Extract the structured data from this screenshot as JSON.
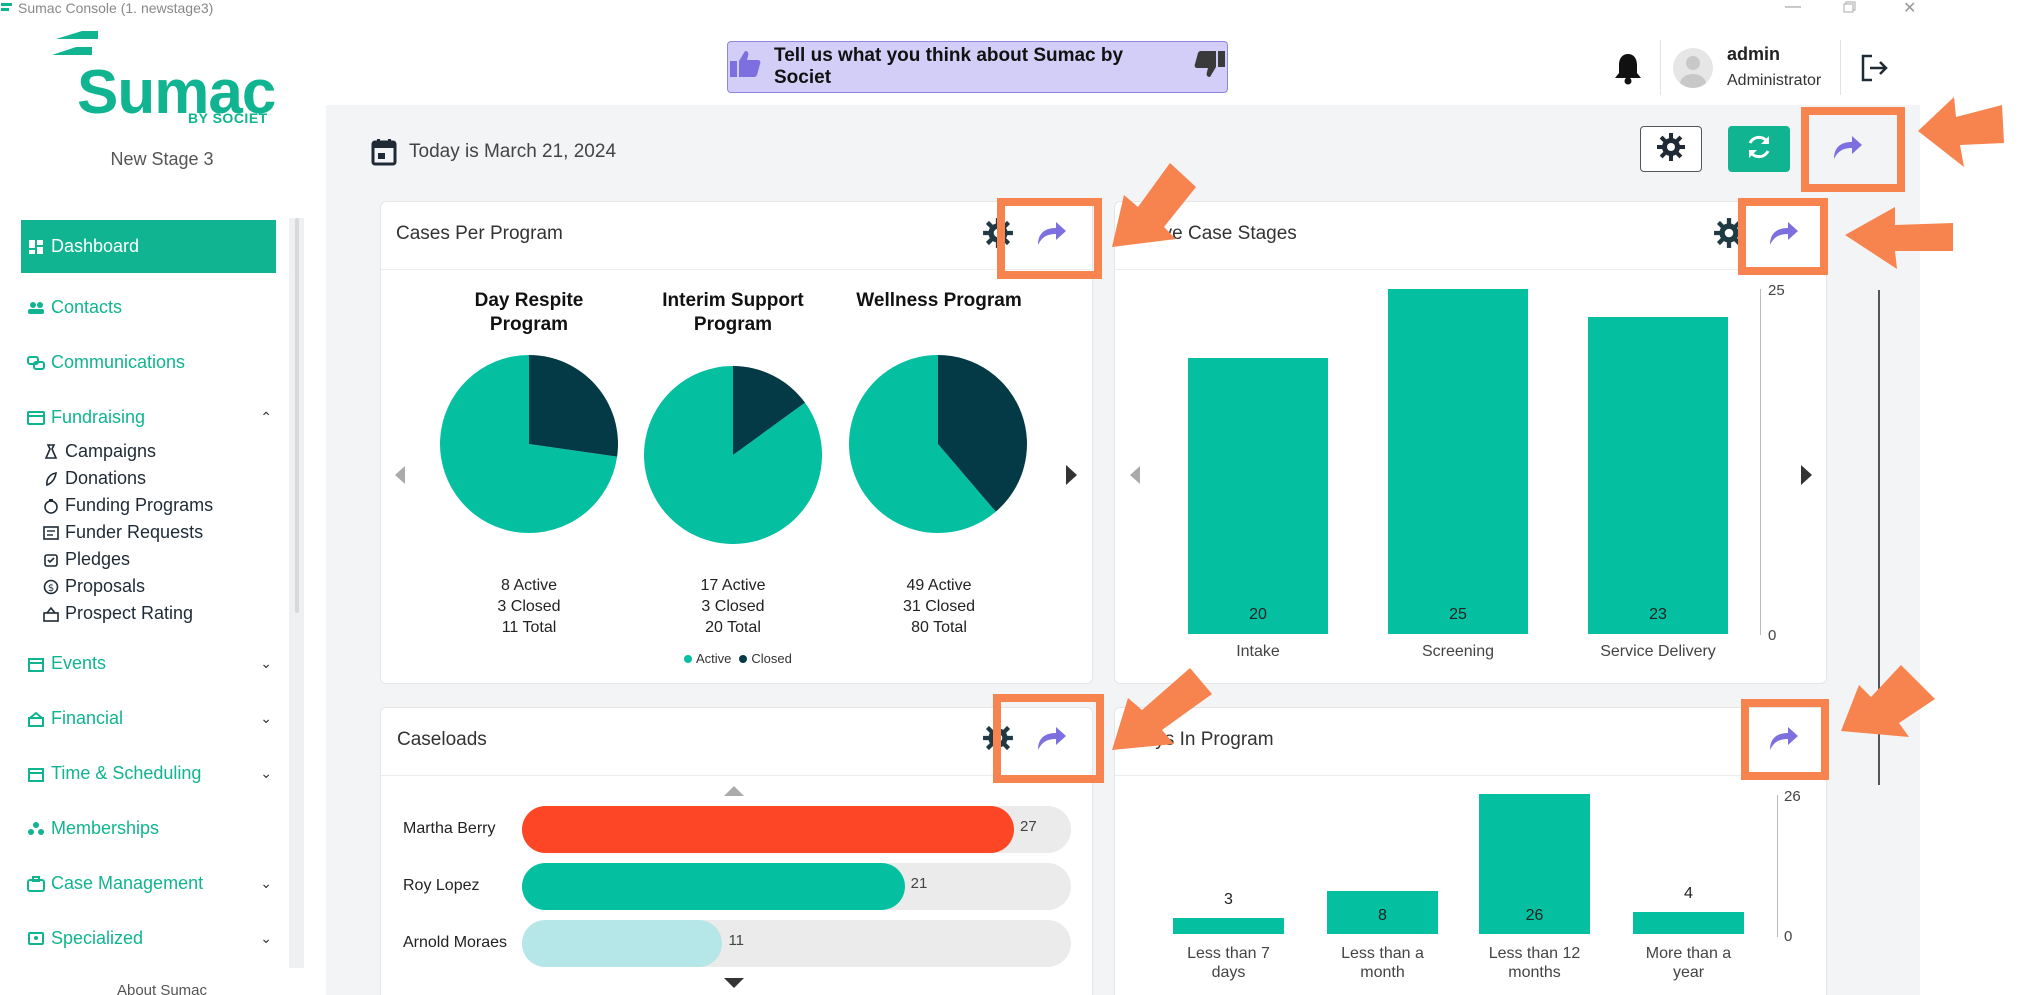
{
  "window": {
    "title": "Sumac Console (1. newstage3)"
  },
  "brand": {
    "name": "Sumac",
    "sub": "BY SOCIET",
    "stage": "New Stage 3"
  },
  "nav": {
    "dashboard": "Dashboard",
    "contacts": "Contacts",
    "communications": "Communications",
    "fundraising": "Fundraising",
    "fundraising_items": [
      "Campaigns",
      "Donations",
      "Funding Programs",
      "Funder Requests",
      "Pledges",
      "Proposals",
      "Prospect Rating"
    ],
    "events": "Events",
    "financial": "Financial",
    "time_scheduling": "Time & Scheduling",
    "memberships": "Memberships",
    "case_management": "Case Management",
    "specialized": "Specialized",
    "about": "About Sumac"
  },
  "header": {
    "feedback": "Tell us what you think about Sumac by Societ",
    "user_name": "admin",
    "user_role": "Administrator"
  },
  "toolbar": {
    "today": "Today is March 21, 2024"
  },
  "cases_per_program": {
    "title": "Cases Per Program",
    "legend_active": "Active",
    "legend_closed": "Closed",
    "programs": [
      {
        "name_line1": "Day Respite Program",
        "name_line2": "",
        "active": "8 Active",
        "closed": "3 Closed",
        "total": "11 Total"
      },
      {
        "name_line1": "Interim Support",
        "name_line2": "Program",
        "active": "17 Active",
        "closed": "3 Closed",
        "total": "20 Total"
      },
      {
        "name_line1": "Wellness Program",
        "name_line2": "",
        "active": "49 Active",
        "closed": "31 Closed",
        "total": "80 Total"
      }
    ]
  },
  "active_case_stages": {
    "title": "Active Case Stages",
    "axis_top": "25",
    "axis_bottom": "0",
    "bars": [
      {
        "label": "Intake",
        "value_text": "20"
      },
      {
        "label": "Screening",
        "value_text": "25"
      },
      {
        "label": "Service Delivery",
        "value_text": "23"
      }
    ]
  },
  "caseloads": {
    "title": "Caseloads",
    "rows": [
      {
        "name": "Martha Berry",
        "value_text": "27"
      },
      {
        "name": "Roy Lopez",
        "value_text": "21"
      },
      {
        "name": "Arnold Moraes",
        "value_text": "11"
      }
    ]
  },
  "days_in_program": {
    "title": "Days In Program",
    "axis_top": "26",
    "axis_bottom": "0",
    "bars": [
      {
        "label_line1": "Less than 7",
        "label_line2": "days",
        "value_text": "3"
      },
      {
        "label_line1": "Less than a",
        "label_line2": "month",
        "value_text": "8"
      },
      {
        "label_line1": "Less than 12",
        "label_line2": "months",
        "value_text": "26"
      },
      {
        "label_line1": "More than a",
        "label_line2": "year",
        "value_text": "4"
      }
    ]
  },
  "chart_data": [
    {
      "type": "pie",
      "title": "Day Respite Program",
      "labels": [
        "Active",
        "Closed"
      ],
      "values": [
        8,
        3
      ],
      "colors": [
        "#04c0a0",
        "#043a46"
      ]
    },
    {
      "type": "pie",
      "title": "Interim Support Program",
      "labels": [
        "Active",
        "Closed"
      ],
      "values": [
        17,
        3
      ],
      "colors": [
        "#04c0a0",
        "#043a46"
      ]
    },
    {
      "type": "pie",
      "title": "Wellness Program",
      "labels": [
        "Active",
        "Closed"
      ],
      "values": [
        49,
        31
      ],
      "colors": [
        "#04c0a0",
        "#043a46"
      ]
    },
    {
      "type": "bar",
      "title": "Active Case Stages",
      "categories": [
        "Intake",
        "Screening",
        "Service Delivery"
      ],
      "values": [
        20,
        25,
        23
      ],
      "ylim": [
        0,
        25
      ],
      "color": "#04c0a0"
    },
    {
      "type": "bar",
      "title": "Caseloads",
      "orientation": "horizontal",
      "categories": [
        "Martha Berry",
        "Roy Lopez",
        "Arnold Moraes"
      ],
      "values": [
        27,
        21,
        11
      ],
      "colors": [
        "#fc4625",
        "#04c0a0",
        "#b5e6e8"
      ]
    },
    {
      "type": "bar",
      "title": "Days In Program",
      "categories": [
        "Less than 7 days",
        "Less than a month",
        "Less than 12 months",
        "More than a year"
      ],
      "values": [
        3,
        8,
        26,
        4
      ],
      "ylim": [
        0,
        26
      ],
      "color": "#04c0a0"
    }
  ],
  "colors": {
    "accent": "#10b491",
    "bar": "#04c0a0",
    "dark": "#043a46",
    "highlight": "#f7834f",
    "share": "#7e6fe0"
  }
}
